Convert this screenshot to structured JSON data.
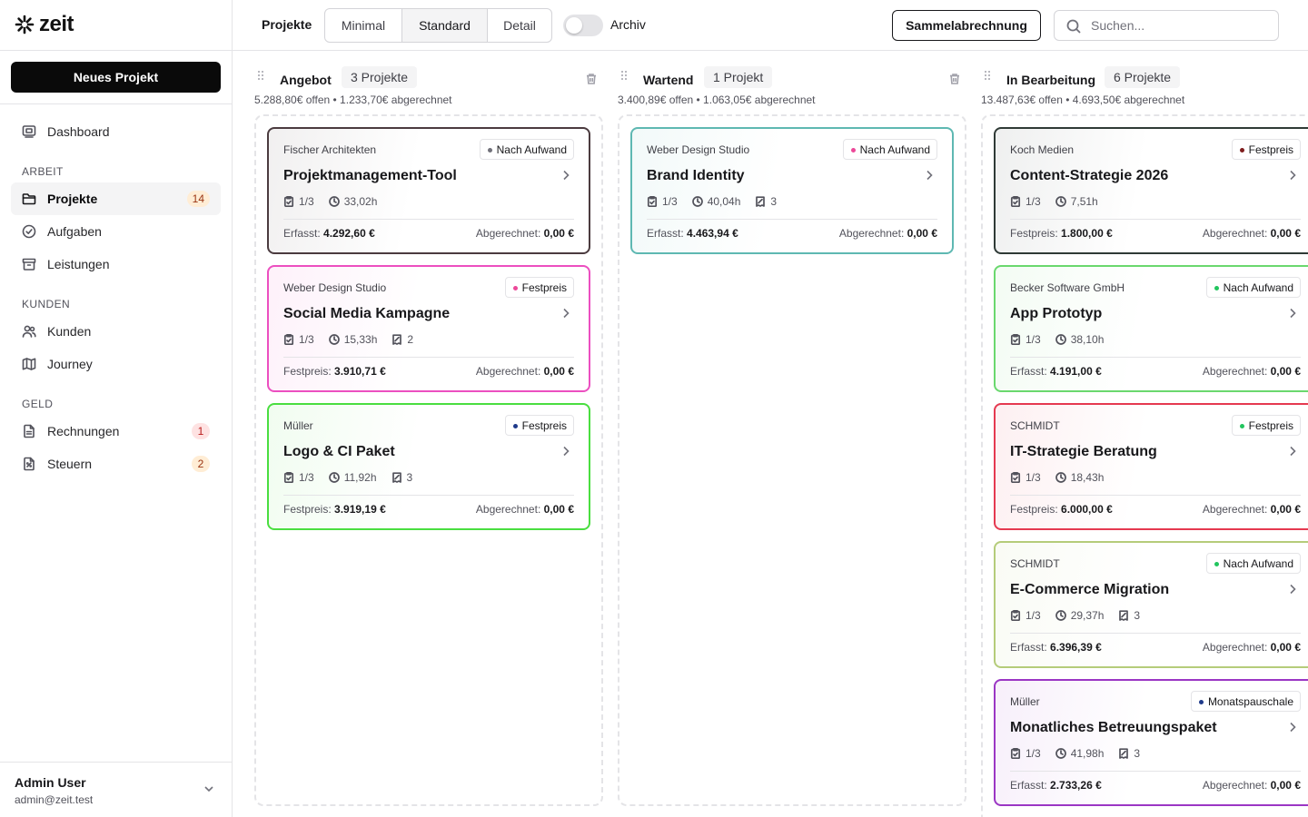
{
  "app": {
    "logo_text": "zeit"
  },
  "sidebar": {
    "new_project_label": "Neues Projekt",
    "dashboard": "Dashboard",
    "sections": {
      "arbeit": "ARBEIT",
      "kunden": "KUNDEN",
      "geld": "GELD"
    },
    "items": {
      "projekte": {
        "label": "Projekte",
        "badge": "14"
      },
      "aufgaben": {
        "label": "Aufgaben"
      },
      "leistungen": {
        "label": "Leistungen"
      },
      "kunden": {
        "label": "Kunden"
      },
      "journey": {
        "label": "Journey"
      },
      "rechnungen": {
        "label": "Rechnungen",
        "badge": "1"
      },
      "steuern": {
        "label": "Steuern",
        "badge": "2"
      }
    },
    "user": {
      "name": "Admin User",
      "email": "admin@zeit.test"
    }
  },
  "topbar": {
    "title": "Projekte",
    "views": [
      "Minimal",
      "Standard",
      "Detail"
    ],
    "active_view": "Standard",
    "archive_label": "Archiv",
    "archive_on": false,
    "sammel_label": "Sammelabrechnung",
    "search_placeholder": "Suchen..."
  },
  "badge_colors": {
    "Nach Aufwand": "#71717a",
    "Festpreis": "#ec4899",
    "Monatspauschale": "#1e3a8a"
  },
  "columns": [
    {
      "title": "Angebot",
      "count": "3 Projekte",
      "summary": "5.288,80€ offen • 1.233,70€ abgerechnet",
      "cards": [
        {
          "client": "Fischer Architekten",
          "badge": "Nach Aufwand",
          "dot": "#71717a",
          "border": "#4b3b3f",
          "title": "Projektmanagement-Tool",
          "tasks": "1/3",
          "hours": "33,02h",
          "docs": "",
          "left_label": "Erfasst:",
          "left_value": "4.292,60 €",
          "right_label": "Abgerechnet:",
          "right_value": "0,00 €"
        },
        {
          "client": "Weber Design Studio",
          "badge": "Festpreis",
          "dot": "#ec4899",
          "border": "#ec4fc0",
          "title": "Social Media Kampagne",
          "tasks": "1/3",
          "hours": "15,33h",
          "docs": "2",
          "left_label": "Festpreis:",
          "left_value": "3.910,71 €",
          "right_label": "Abgerechnet:",
          "right_value": "0,00 €"
        },
        {
          "client": "Müller",
          "badge": "Festpreis",
          "dot": "#1e3a8a",
          "border": "#4ade40",
          "title": "Logo & CI Paket",
          "tasks": "1/3",
          "hours": "11,92h",
          "docs": "3",
          "left_label": "Festpreis:",
          "left_value": "3.919,19 €",
          "right_label": "Abgerechnet:",
          "right_value": "0,00 €"
        }
      ]
    },
    {
      "title": "Wartend",
      "count": "1 Projekt",
      "summary": "3.400,89€ offen • 1.063,05€ abgerechnet",
      "cards": [
        {
          "client": "Weber Design Studio",
          "badge": "Nach Aufwand",
          "dot": "#ec4899",
          "border": "#5eb8b2",
          "title": "Brand Identity",
          "tasks": "1/3",
          "hours": "40,04h",
          "docs": "3",
          "left_label": "Erfasst:",
          "left_value": "4.463,94 €",
          "right_label": "Abgerechnet:",
          "right_value": "0,00 €"
        }
      ]
    },
    {
      "title": "In Bearbeitung",
      "count": "6 Projekte",
      "summary": "13.487,63€ offen • 4.693,50€ abgerechnet",
      "cards": [
        {
          "client": "Koch Medien",
          "badge": "Festpreis",
          "dot": "#7f1d1d",
          "border": "#2f3a36",
          "title": "Content-Strategie 2026",
          "tasks": "1/3",
          "hours": "7,51h",
          "docs": "",
          "left_label": "Festpreis:",
          "left_value": "1.800,00 €",
          "right_label": "Abgerechnet:",
          "right_value": "0,00 €"
        },
        {
          "client": "Becker Software GmbH",
          "badge": "Nach Aufwand",
          "dot": "#22c55e",
          "border": "#6ad86e",
          "title": "App Prototyp",
          "tasks": "1/3",
          "hours": "38,10h",
          "docs": "",
          "left_label": "Erfasst:",
          "left_value": "4.191,00 €",
          "right_label": "Abgerechnet:",
          "right_value": "0,00 €"
        },
        {
          "client": "SCHMIDT",
          "badge": "Festpreis",
          "dot": "#22c55e",
          "border": "#e53950",
          "title": "IT-Strategie Beratung",
          "tasks": "1/3",
          "hours": "18,43h",
          "docs": "",
          "left_label": "Festpreis:",
          "left_value": "6.000,00 €",
          "right_label": "Abgerechnet:",
          "right_value": "0,00 €"
        },
        {
          "client": "SCHMIDT",
          "badge": "Nach Aufwand",
          "dot": "#22c55e",
          "border": "#b5cc7a",
          "title": "E-Commerce Migration",
          "tasks": "1/3",
          "hours": "29,37h",
          "docs": "3",
          "left_label": "Erfasst:",
          "left_value": "6.396,39 €",
          "right_label": "Abgerechnet:",
          "right_value": "0,00 €"
        },
        {
          "client": "Müller",
          "badge": "Monatspauschale",
          "dot": "#1e3a8a",
          "border": "#9b36c4",
          "title": "Monatliches Betreuungspaket",
          "tasks": "1/3",
          "hours": "41,98h",
          "docs": "3",
          "left_label": "Erfasst:",
          "left_value": "2.733,26 €",
          "right_label": "Abgerechnet:",
          "right_value": "0,00 €"
        }
      ]
    }
  ]
}
